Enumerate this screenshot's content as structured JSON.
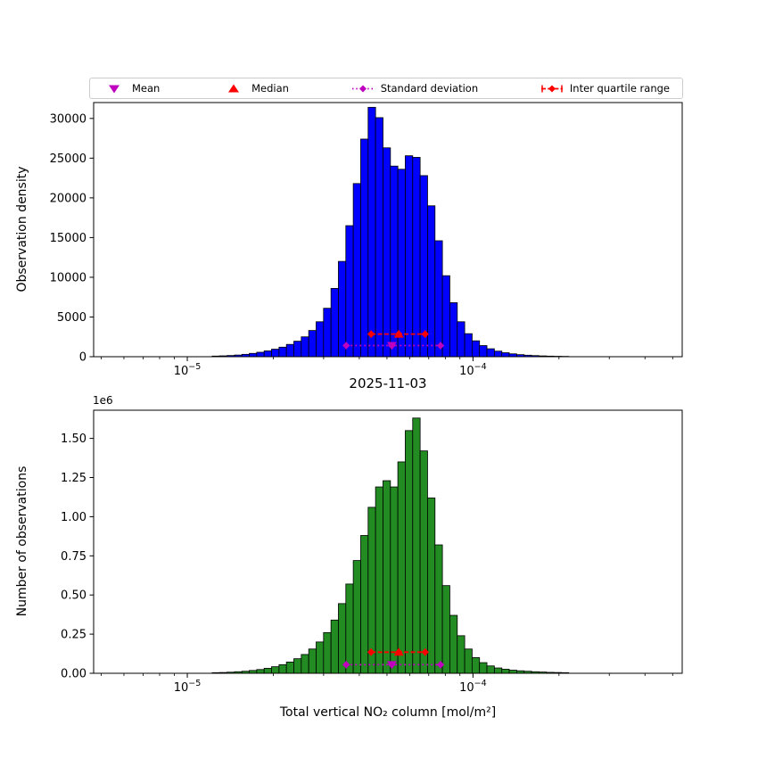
{
  "figure": {
    "background": "#ffffff",
    "title": "2025-11-03",
    "xlabel": "Total vertical NO₂ column [mol/m²]"
  },
  "legend": {
    "items": [
      {
        "label": "Mean",
        "marker": "triangle-down",
        "color": "#bf00bf"
      },
      {
        "label": "Median",
        "marker": "triangle-up",
        "color": "#ff0000"
      },
      {
        "label": "Standard deviation",
        "marker": "diamond-dotted",
        "color": "#bf00bf"
      },
      {
        "label": "Inter quartile range",
        "marker": "diamond-dashed",
        "color": "#ff0000"
      }
    ]
  },
  "chart_data": [
    {
      "type": "bar",
      "variant": "histogram",
      "x_scale": "log",
      "ylabel": "Observation density",
      "xlim": [
        4.7e-06,
        0.00054
      ],
      "ylim": [
        0,
        32000
      ],
      "yticks": [
        0,
        5000,
        10000,
        15000,
        20000,
        25000,
        30000
      ],
      "ytick_labels": [
        "0",
        "5000",
        "10000",
        "15000",
        "20000",
        "25000",
        "30000"
      ],
      "xticks": [
        1e-05,
        0.0001
      ],
      "xtick_labels": [
        {
          "base": "10",
          "exp": "−5"
        },
        {
          "base": "10",
          "exp": "−4"
        }
      ],
      "bar_color": "#0000ff",
      "bar_edge_color": "#000000",
      "bin_centers": [
        1.259e-05,
        1.337e-05,
        1.419e-05,
        1.507e-05,
        1.6e-05,
        1.698e-05,
        1.803e-05,
        1.914e-05,
        2.032e-05,
        2.158e-05,
        2.291e-05,
        2.432e-05,
        2.582e-05,
        2.742e-05,
        2.911e-05,
        3.09e-05,
        3.281e-05,
        3.483e-05,
        3.698e-05,
        3.926e-05,
        4.169e-05,
        4.426e-05,
        4.699e-05,
        4.989e-05,
        5.297e-05,
        5.623e-05,
        5.97e-05,
        6.339e-05,
        6.73e-05,
        7.145e-05,
        7.586e-05,
        8.054e-05,
        8.551e-05,
        9.078e-05,
        9.638e-05,
        0.0001023,
        0.0001086,
        0.0001153,
        0.0001225,
        0.00013,
        0.000138,
        0.0001466,
        0.0001556,
        0.0001652,
        0.0001754,
        0.0001862,
        0.0001977,
        0.0002099
      ],
      "counts": [
        80,
        110,
        150,
        210,
        300,
        420,
        560,
        730,
        950,
        1200,
        1550,
        1950,
        2500,
        3300,
        4400,
        6100,
        8600,
        12000,
        16500,
        21800,
        27400,
        31400,
        30100,
        26300,
        24000,
        23600,
        25300,
        25100,
        22800,
        19000,
        14600,
        10200,
        6800,
        4400,
        2900,
        2000,
        1400,
        1000,
        700,
        500,
        360,
        260,
        190,
        140,
        100,
        75,
        55,
        40
      ],
      "stats": {
        "mean": 5.2e-05,
        "median": 5.5e-05,
        "std_low": 3.6e-05,
        "std_high": 7.7e-05,
        "q1": 4.4e-05,
        "q3": 6.8e-05,
        "std_line_y": 1400,
        "iqr_line_y": 2850,
        "mean_color": "#bf00bf",
        "median_color": "#ff0000"
      }
    },
    {
      "type": "bar",
      "variant": "histogram",
      "x_scale": "log",
      "title": "2025-11-03",
      "ylabel": "Number of observations",
      "offset_text": "1e6",
      "xlim": [
        4.7e-06,
        0.00054
      ],
      "ylim": [
        0,
        1680000
      ],
      "yticks": [
        0,
        250000,
        500000,
        750000,
        1000000,
        1250000,
        1500000
      ],
      "ytick_labels": [
        "0.00",
        "0.25",
        "0.50",
        "0.75",
        "1.00",
        "1.25",
        "1.50"
      ],
      "xticks": [
        1e-05,
        0.0001
      ],
      "xtick_labels": [
        {
          "base": "10",
          "exp": "−5"
        },
        {
          "base": "10",
          "exp": "−4"
        }
      ],
      "bar_color": "#228b22",
      "bar_edge_color": "#000000",
      "bin_centers": [
        1.259e-05,
        1.337e-05,
        1.419e-05,
        1.507e-05,
        1.6e-05,
        1.698e-05,
        1.803e-05,
        1.914e-05,
        2.032e-05,
        2.158e-05,
        2.291e-05,
        2.432e-05,
        2.582e-05,
        2.742e-05,
        2.911e-05,
        3.09e-05,
        3.281e-05,
        3.483e-05,
        3.698e-05,
        3.926e-05,
        4.169e-05,
        4.426e-05,
        4.699e-05,
        4.989e-05,
        5.297e-05,
        5.623e-05,
        5.97e-05,
        6.339e-05,
        6.73e-05,
        7.145e-05,
        7.586e-05,
        8.054e-05,
        8.551e-05,
        9.078e-05,
        9.638e-05,
        0.0001023,
        0.0001086,
        0.0001153,
        0.0001225,
        0.00013,
        0.000138,
        0.0001466,
        0.0001556,
        0.0001652,
        0.0001754,
        0.0001862,
        0.0001977,
        0.0002099
      ],
      "counts": [
        4000,
        5000,
        7000,
        10000,
        13000,
        18000,
        24000,
        32000,
        42000,
        55000,
        72000,
        93000,
        120000,
        155000,
        200000,
        260000,
        340000,
        445000,
        570000,
        720000,
        880000,
        1060000,
        1190000,
        1230000,
        1190000,
        1350000,
        1550000,
        1630000,
        1420000,
        1120000,
        820000,
        560000,
        370000,
        240000,
        155000,
        100000,
        68000,
        47000,
        34000,
        26000,
        20000,
        16000,
        13000,
        10000,
        8000,
        6000,
        5000,
        4000
      ],
      "stats": {
        "mean": 5.2e-05,
        "median": 5.5e-05,
        "std_low": 3.6e-05,
        "std_high": 7.7e-05,
        "q1": 4.4e-05,
        "q3": 6.8e-05,
        "std_line_y": 55000,
        "iqr_line_y": 135000,
        "mean_color": "#bf00bf",
        "median_color": "#ff0000"
      }
    }
  ]
}
